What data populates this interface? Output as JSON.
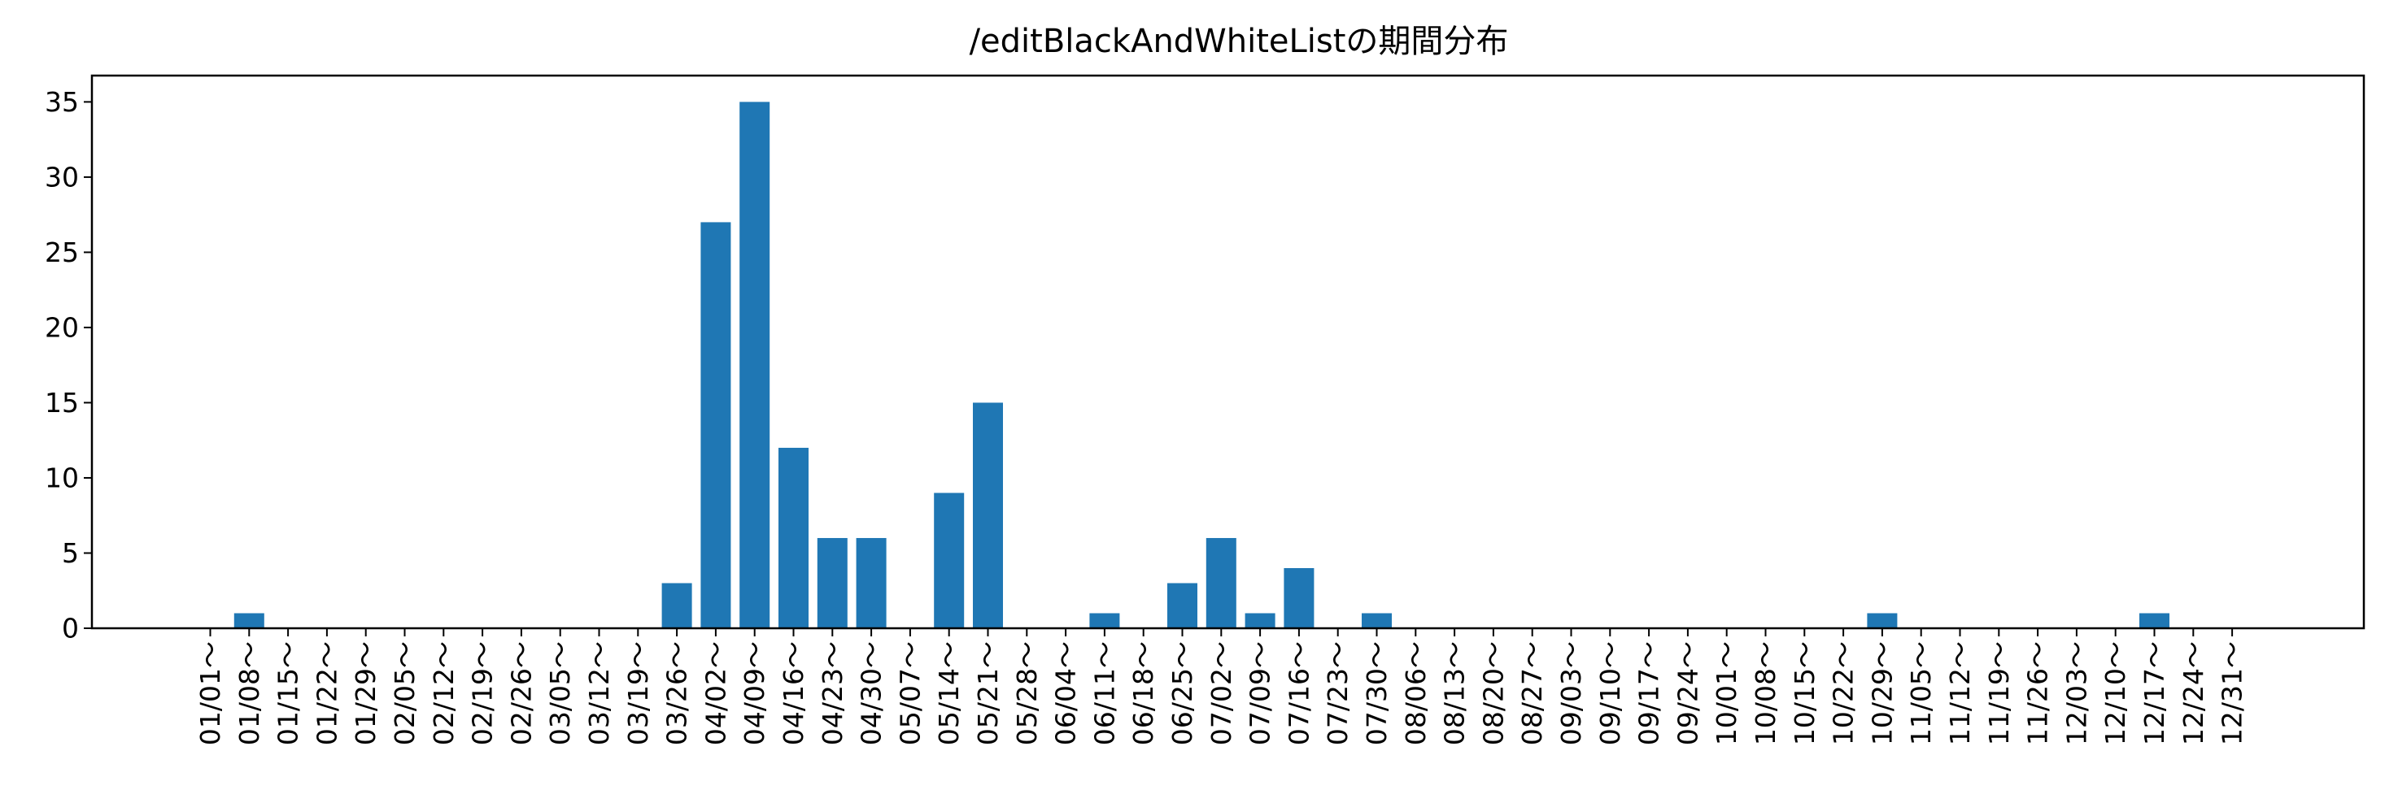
{
  "chart_data": {
    "type": "bar",
    "title": "/editBlackAndWhiteListの期間分布",
    "xlabel": "",
    "ylabel": "",
    "categories": [
      "01/01～",
      "01/08～",
      "01/15～",
      "01/22～",
      "01/29～",
      "02/05～",
      "02/12～",
      "02/19～",
      "02/26～",
      "03/05～",
      "03/12～",
      "03/19～",
      "03/26～",
      "04/02～",
      "04/09～",
      "04/16～",
      "04/23～",
      "04/30～",
      "05/07～",
      "05/14～",
      "05/21～",
      "05/28～",
      "06/04～",
      "06/11～",
      "06/18～",
      "06/25～",
      "07/02～",
      "07/09～",
      "07/16～",
      "07/23～",
      "07/30～",
      "08/06～",
      "08/13～",
      "08/20～",
      "08/27～",
      "09/03～",
      "09/10～",
      "09/17～",
      "09/24～",
      "10/01～",
      "10/08～",
      "10/15～",
      "10/22～",
      "10/29～",
      "11/05～",
      "11/12～",
      "11/19～",
      "11/26～",
      "12/03～",
      "12/10～",
      "12/17～",
      "12/24～",
      "12/31～"
    ],
    "values": [
      0,
      1,
      0,
      0,
      0,
      0,
      0,
      0,
      0,
      0,
      0,
      0,
      3,
      27,
      35,
      12,
      6,
      6,
      0,
      9,
      15,
      0,
      0,
      1,
      0,
      3,
      6,
      1,
      4,
      0,
      1,
      0,
      0,
      0,
      0,
      0,
      0,
      0,
      0,
      0,
      0,
      0,
      0,
      1,
      0,
      0,
      0,
      0,
      0,
      0,
      1,
      0,
      0
    ],
    "yticks": [
      0,
      5,
      10,
      15,
      20,
      25,
      30,
      35
    ],
    "ylim": [
      0,
      36.75
    ],
    "bar_color": "#1f77b4",
    "grid": false,
    "legend": "none"
  }
}
